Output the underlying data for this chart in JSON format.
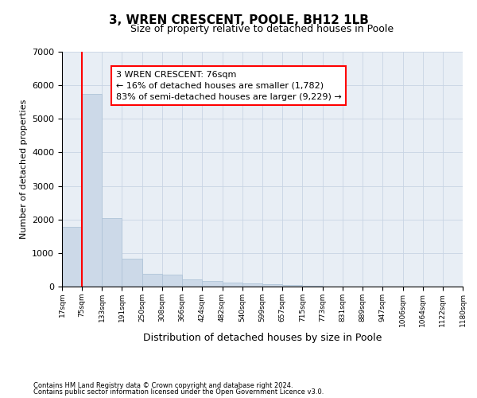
{
  "title": "3, WREN CRESCENT, POOLE, BH12 1LB",
  "subtitle": "Size of property relative to detached houses in Poole",
  "xlabel": "Distribution of detached houses by size in Poole",
  "ylabel": "Number of detached properties",
  "footnote1": "Contains HM Land Registry data © Crown copyright and database right 2024.",
  "footnote2": "Contains public sector information licensed under the Open Government Licence v3.0.",
  "annotation_line1": "3 WREN CRESCENT: 76sqm",
  "annotation_line2": "← 16% of detached houses are smaller (1,782)",
  "annotation_line3": "83% of semi-detached houses are larger (9,229) →",
  "bar_edges": [
    17,
    75,
    133,
    191,
    250,
    308,
    366,
    424,
    482,
    540,
    599,
    657,
    715,
    773,
    831,
    889,
    947,
    1006,
    1064,
    1122,
    1180
  ],
  "bar_heights": [
    1780,
    5750,
    2050,
    830,
    380,
    350,
    220,
    170,
    120,
    100,
    70,
    55,
    30,
    0,
    0,
    0,
    0,
    0,
    0,
    0
  ],
  "bar_color": "#ccd9e8",
  "bar_edgecolor": "#b0c4d8",
  "red_line_x": 75,
  "ylim": [
    0,
    7000
  ],
  "yticks": [
    0,
    1000,
    2000,
    3000,
    4000,
    5000,
    6000,
    7000
  ],
  "plot_bg_color": "#e8eef5",
  "background_color": "#ffffff",
  "grid_color": "#c8d4e4",
  "title_fontsize": 11,
  "subtitle_fontsize": 9
}
